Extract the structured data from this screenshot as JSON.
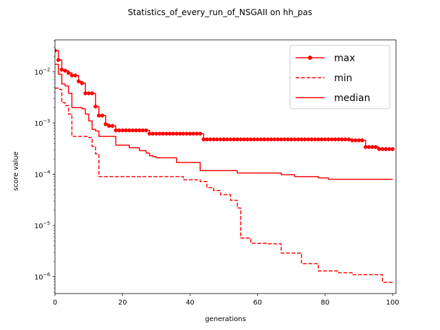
{
  "chart_data": {
    "type": "line",
    "title": "Statistics_of_every_run_of_NSGAII on hh_pas",
    "xlabel": "generations",
    "ylabel": "score value",
    "xlim": [
      0,
      101
    ],
    "ylim": [
      4.7e-07,
      0.042
    ],
    "yscale": "log",
    "grid": false,
    "legend_position": "top-right",
    "x_ticks": [
      0,
      20,
      40,
      60,
      80,
      100
    ],
    "y_ticks": [
      {
        "value": 1e-06,
        "base": "10",
        "exp": "−6"
      },
      {
        "value": 1e-05,
        "base": "10",
        "exp": "−5"
      },
      {
        "value": 0.0001,
        "base": "10",
        "exp": "−4"
      },
      {
        "value": 0.001,
        "base": "10",
        "exp": "−3"
      },
      {
        "value": 0.01,
        "base": "10",
        "exp": "−2"
      }
    ],
    "color": "#ff0000",
    "series": [
      {
        "name": "max",
        "style": "solid",
        "marker": "circle",
        "steps": [
          [
            0,
            0.026
          ],
          [
            1,
            0.017
          ],
          [
            2,
            0.011
          ],
          [
            3,
            0.0105
          ],
          [
            4,
            0.0095
          ],
          [
            5,
            0.0085
          ],
          [
            6,
            0.0085
          ],
          [
            7,
            0.0065
          ],
          [
            8,
            0.006
          ],
          [
            9,
            0.0038
          ],
          [
            10,
            0.0038
          ],
          [
            11,
            0.0038
          ],
          [
            12,
            0.0021
          ],
          [
            13,
            0.0014
          ],
          [
            14,
            0.0014
          ],
          [
            15,
            0.00095
          ],
          [
            16,
            0.00088
          ],
          [
            17,
            0.00088
          ],
          [
            18,
            0.00072
          ],
          [
            28,
            0.00062
          ],
          [
            44,
            0.00048
          ],
          [
            88,
            0.00046
          ],
          [
            92,
            0.00034
          ],
          [
            96,
            0.00031
          ],
          [
            100,
            0.00031
          ]
        ]
      },
      {
        "name": "min",
        "style": "dashed",
        "marker": "none",
        "steps": [
          [
            0,
            0.0048
          ],
          [
            1,
            0.0045
          ],
          [
            2,
            0.0025
          ],
          [
            3,
            0.0022
          ],
          [
            4,
            0.0015
          ],
          [
            5,
            0.00055
          ],
          [
            10,
            0.00052
          ],
          [
            11,
            0.00035
          ],
          [
            12,
            0.00025
          ],
          [
            13,
            9e-05
          ],
          [
            38,
            7.8e-05
          ],
          [
            43,
            7.2e-05
          ],
          [
            45,
            5.5e-05
          ],
          [
            47,
            4.8e-05
          ],
          [
            49,
            4e-05
          ],
          [
            52,
            3.1e-05
          ],
          [
            54,
            2.2e-05
          ],
          [
            55,
            5.7e-06
          ],
          [
            58,
            4.5e-06
          ],
          [
            63,
            4.4e-06
          ],
          [
            67,
            2.9e-06
          ],
          [
            73,
            1.8e-06
          ],
          [
            78,
            1.3e-06
          ],
          [
            84,
            1.2e-06
          ],
          [
            88,
            1.1e-06
          ],
          [
            97,
            7.8e-07
          ],
          [
            100,
            7.8e-07
          ]
        ]
      },
      {
        "name": "median",
        "style": "solid",
        "marker": "none",
        "steps": [
          [
            0,
            0.014
          ],
          [
            1,
            0.009
          ],
          [
            2,
            0.0058
          ],
          [
            3,
            0.0053
          ],
          [
            4,
            0.0038
          ],
          [
            5,
            0.002
          ],
          [
            8,
            0.0019
          ],
          [
            9,
            0.0015
          ],
          [
            10,
            0.0011
          ],
          [
            11,
            0.00075
          ],
          [
            12,
            0.0007
          ],
          [
            13,
            0.00055
          ],
          [
            18,
            0.00037
          ],
          [
            22,
            0.00033
          ],
          [
            25,
            0.00029
          ],
          [
            27,
            0.00026
          ],
          [
            28,
            0.00023
          ],
          [
            29,
            0.00022
          ],
          [
            30,
            0.00021
          ],
          [
            36,
            0.00017
          ],
          [
            43,
            0.000118
          ],
          [
            54,
            0.000106
          ],
          [
            67,
            9.8e-05
          ],
          [
            71,
            9e-05
          ],
          [
            78,
            8.5e-05
          ],
          [
            81,
            8e-05
          ],
          [
            100,
            8e-05
          ]
        ]
      }
    ]
  }
}
